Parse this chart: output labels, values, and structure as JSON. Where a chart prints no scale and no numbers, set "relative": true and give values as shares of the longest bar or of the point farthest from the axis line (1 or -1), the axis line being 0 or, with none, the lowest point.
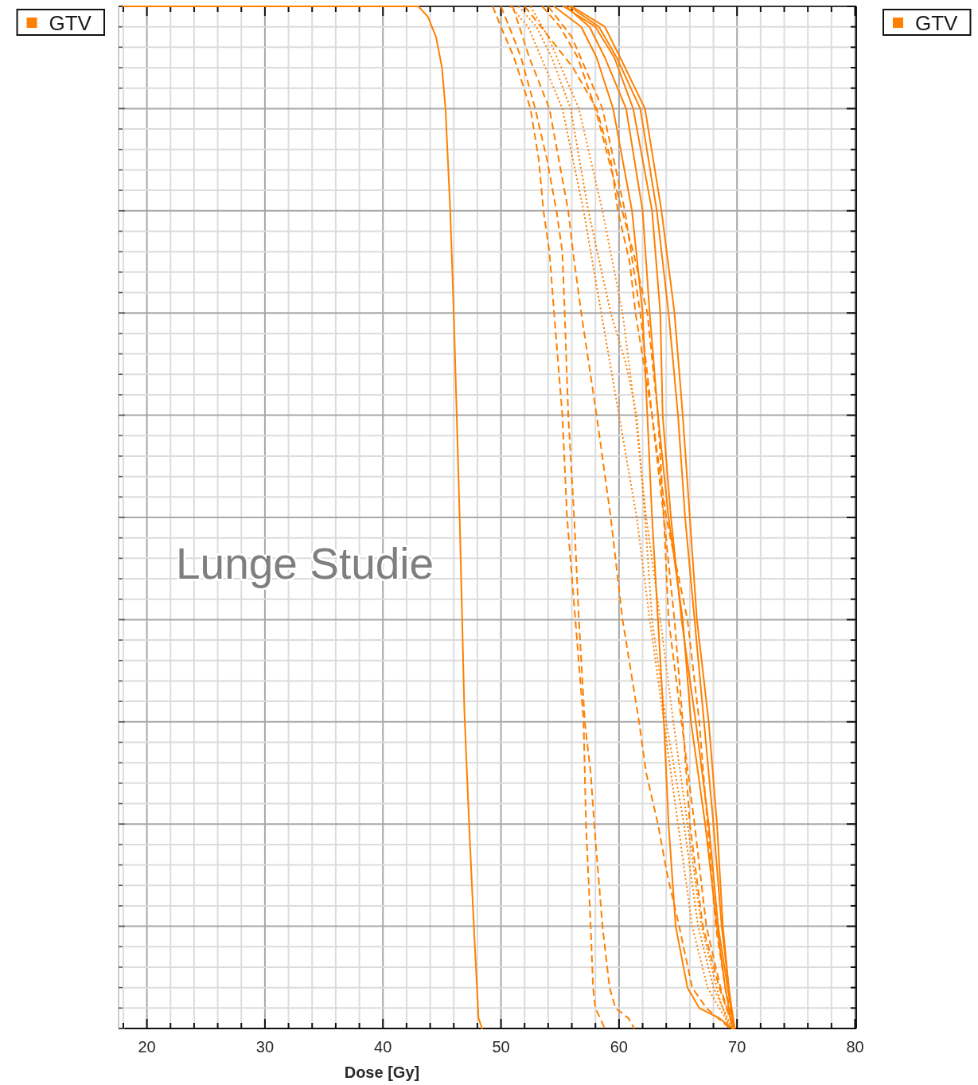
{
  "chart_data": {
    "type": "line",
    "relative": true,
    "xlabel": "Dose [Gy]",
    "annotations": [
      "Lunge Studie"
    ],
    "xlim": [
      17.6,
      80.1
    ],
    "xticks": [
      {
        "value": 18,
        "label": null
      },
      20,
      {
        "value": 22,
        "label": null
      },
      {
        "value": 24,
        "label": null
      },
      {
        "value": 26,
        "label": null
      },
      {
        "value": 28,
        "label": null
      },
      30,
      {
        "value": 32,
        "label": null
      },
      {
        "value": 34,
        "label": null
      },
      {
        "value": 36,
        "label": null
      },
      {
        "value": 38,
        "label": null
      },
      40,
      {
        "value": 42,
        "label": null
      },
      {
        "value": 44,
        "label": null
      },
      {
        "value": 46,
        "label": null
      },
      {
        "value": 48,
        "label": null
      },
      50,
      {
        "value": 52,
        "label": null
      },
      {
        "value": 54,
        "label": null
      },
      {
        "value": 56,
        "label": null
      },
      {
        "value": 58,
        "label": null
      },
      60,
      {
        "value": 62,
        "label": null
      },
      {
        "value": 64,
        "label": null
      },
      {
        "value": 66,
        "label": null
      },
      {
        "value": 68,
        "label": null
      },
      70,
      {
        "value": 72,
        "label": null
      },
      {
        "value": 74,
        "label": null
      },
      {
        "value": 76,
        "label": null
      },
      {
        "value": 78,
        "label": null
      },
      80
    ],
    "grid": true,
    "legend": [
      "top left",
      "top right"
    ],
    "series": [
      {
        "name": "GTV",
        "color": "#ff8000",
        "line_style": "solid",
        "x": [
          18,
          43.0,
          43.8,
          44.5,
          45.0,
          45.3,
          45.7,
          46.0,
          46.5,
          46.9,
          47.3,
          47.7,
          48.1,
          48.4
        ],
        "values": [
          1,
          1,
          0.99,
          0.97,
          0.94,
          0.9,
          0.8,
          0.7,
          0.5,
          0.31,
          0.2,
          0.1,
          0.01,
          0
        ]
      },
      {
        "color": "#ff8000",
        "line_style": "dashed",
        "x": [
          49.3,
          50.0,
          51.1,
          52.5,
          53.2,
          53.6,
          54.1,
          54.5,
          55.2,
          55.6,
          56.3,
          57.0,
          57.2,
          57.6,
          57.8,
          58.0,
          58.8
        ],
        "values": [
          1,
          0.98,
          0.95,
          0.9,
          0.85,
          0.8,
          0.76,
          0.7,
          0.6,
          0.5,
          0.4,
          0.3,
          0.2,
          0.1,
          0.04,
          0.02,
          0
        ]
      },
      {
        "color": "#ff8000",
        "line_style": "dashed",
        "x": [
          50.0,
          50.7,
          51.7,
          52.9,
          53.9,
          54.7,
          55.2,
          55.4,
          55.7,
          56.2,
          56.6,
          57.1,
          57.6,
          57.9,
          58.6,
          59.2,
          59.7,
          60.8,
          61.3
        ],
        "values": [
          1,
          0.98,
          0.95,
          0.9,
          0.85,
          0.8,
          0.76,
          0.7,
          0.6,
          0.5,
          0.4,
          0.3,
          0.25,
          0.2,
          0.1,
          0.04,
          0.02,
          0.01,
          0
        ]
      },
      {
        "color": "#ff8000",
        "line_style": "dashed",
        "x": [
          51.0,
          52.4,
          54.1,
          55.7,
          56.1,
          56.8,
          58.1,
          59.3,
          60.3,
          61.7,
          62.3,
          63.3,
          64.1,
          65.1,
          66.2,
          67.4,
          69.4
        ],
        "values": [
          1,
          0.95,
          0.9,
          0.8,
          0.76,
          0.7,
          0.6,
          0.5,
          0.4,
          0.3,
          0.25,
          0.2,
          0.15,
          0.1,
          0.04,
          0.02,
          0
        ]
      },
      {
        "color": "#ff8000",
        "line_style": "solid",
        "x": [
          56.0,
          58.8,
          60.1,
          62.2,
          63.6,
          64.7,
          65.4,
          66.0,
          66.6,
          67.6,
          68.3,
          68.8,
          69.3,
          69.7
        ],
        "values": [
          1,
          0.98,
          0.95,
          0.9,
          0.8,
          0.7,
          0.6,
          0.5,
          0.4,
          0.3,
          0.2,
          0.1,
          0.04,
          0
        ]
      },
      {
        "color": "#ff8000",
        "line_style": "solid",
        "x": [
          55.5,
          57.5,
          58.8,
          60.6,
          62.0,
          62.6,
          63.3,
          64.2,
          65.4,
          66.1,
          67.3,
          68.3,
          69.0,
          69.6
        ],
        "values": [
          1,
          0.98,
          0.95,
          0.9,
          0.8,
          0.7,
          0.6,
          0.5,
          0.4,
          0.3,
          0.2,
          0.1,
          0.04,
          0
        ]
      },
      {
        "color": "#ff8000",
        "line_style": "solid",
        "x": [
          54.5,
          56.8,
          58.1,
          59.5,
          61.1,
          62.0,
          62.4,
          62.8,
          63.3,
          63.8,
          64.2,
          64.8,
          65.8,
          66.8,
          68.5,
          69.6
        ],
        "values": [
          1,
          0.98,
          0.95,
          0.9,
          0.8,
          0.7,
          0.6,
          0.5,
          0.4,
          0.3,
          0.2,
          0.1,
          0.04,
          0.02,
          0.01,
          0
        ]
      },
      {
        "color": "#ff8000",
        "line_style": "solid",
        "x": [
          55.3,
          58.0,
          59.6,
          61.2,
          62.8,
          63.5,
          63.7,
          64.4,
          65.3,
          66.5,
          67.6,
          68.4,
          69.2,
          69.8
        ],
        "values": [
          1,
          0.98,
          0.95,
          0.9,
          0.8,
          0.7,
          0.6,
          0.5,
          0.4,
          0.3,
          0.2,
          0.1,
          0.04,
          0
        ]
      },
      {
        "color": "#ff8000",
        "line_style": "solid",
        "x": [
          55.8,
          58.3,
          59.8,
          61.8,
          63.2,
          64.2,
          65.0,
          65.6,
          66.4,
          67.2,
          68.0,
          68.7,
          69.3,
          69.8
        ],
        "values": [
          1,
          0.98,
          0.95,
          0.9,
          0.8,
          0.7,
          0.6,
          0.5,
          0.4,
          0.3,
          0.2,
          0.1,
          0.04,
          0
        ]
      },
      {
        "color": "#ff8000",
        "line_style": "dotted",
        "x": [
          50.8,
          52.3,
          53.4,
          55.2,
          57.0,
          58.5,
          60.0,
          61.5,
          62.6,
          63.8,
          65.0,
          66.2,
          67.5,
          69.5
        ],
        "values": [
          1,
          0.98,
          0.95,
          0.9,
          0.8,
          0.7,
          0.6,
          0.5,
          0.4,
          0.3,
          0.2,
          0.1,
          0.04,
          0
        ]
      },
      {
        "color": "#ff8000",
        "line_style": "dashed",
        "x": [
          52.0,
          53.4,
          56.1,
          58.1,
          59.3,
          59.9,
          60.9,
          61.4,
          62.8,
          63.8,
          64.7,
          65.4,
          66.0,
          67.1,
          68.5,
          69.7
        ],
        "values": [
          1,
          0.98,
          0.94,
          0.9,
          0.85,
          0.8,
          0.75,
          0.7,
          0.6,
          0.5,
          0.4,
          0.3,
          0.2,
          0.1,
          0.04,
          0
        ]
      },
      {
        "color": "#ff8000",
        "line_style": "dotted",
        "x": [
          51.5,
          53.0,
          54.3,
          55.9,
          57.4,
          59.3,
          60.6,
          61.5,
          62.2,
          62.8,
          64.0,
          65.5,
          66.7,
          68.0,
          69.6
        ],
        "values": [
          1,
          0.98,
          0.95,
          0.9,
          0.8,
          0.7,
          0.65,
          0.6,
          0.5,
          0.4,
          0.3,
          0.2,
          0.1,
          0.04,
          0
        ]
      },
      {
        "color": "#ff8000",
        "line_style": "dashed",
        "x": [
          53.5,
          55.0,
          56.5,
          58.0,
          59.8,
          61.2,
          62.4,
          63.3,
          63.8,
          64.2,
          65.3,
          66.4,
          67.4,
          68.6,
          69.7
        ],
        "values": [
          1,
          0.98,
          0.95,
          0.9,
          0.82,
          0.76,
          0.7,
          0.6,
          0.5,
          0.4,
          0.3,
          0.2,
          0.1,
          0.04,
          0
        ]
      },
      {
        "color": "#ff8000",
        "line_style": "dashed",
        "x": [
          54.0,
          56.0,
          58.6,
          60.5,
          61.8,
          62.8,
          64.0,
          65.8,
          66.8,
          67.5,
          68.2,
          69.0,
          69.8
        ],
        "values": [
          1,
          0.97,
          0.9,
          0.8,
          0.7,
          0.6,
          0.5,
          0.4,
          0.3,
          0.2,
          0.1,
          0.04,
          0
        ]
      },
      {
        "color": "#ff8000",
        "line_style": "dotted",
        "x": [
          52.5,
          54.0,
          56.6,
          58.6,
          60.3,
          61.4,
          62.3,
          63.5,
          64.6,
          65.8,
          67.0,
          68.5,
          69.4
        ],
        "values": [
          1,
          0.97,
          0.9,
          0.8,
          0.7,
          0.6,
          0.5,
          0.4,
          0.3,
          0.2,
          0.1,
          0.03,
          0
        ]
      }
    ]
  }
}
